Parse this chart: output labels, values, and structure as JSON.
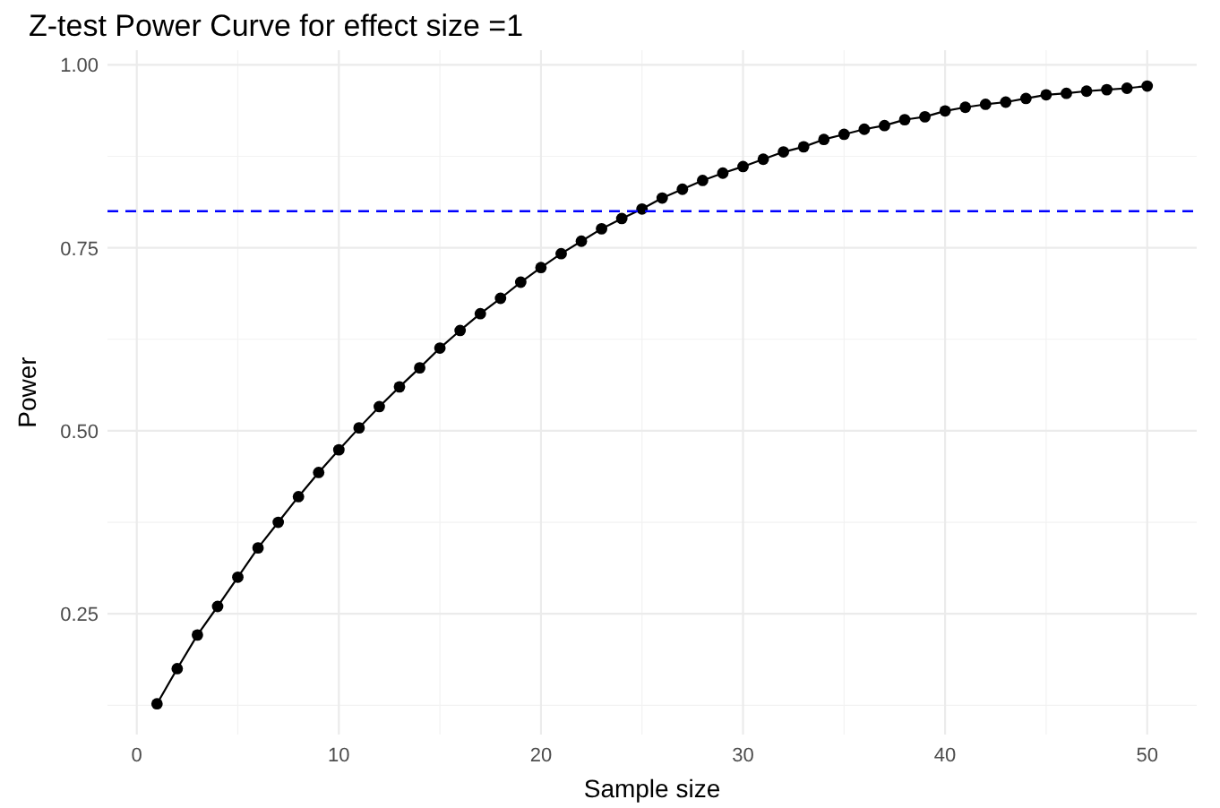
{
  "chart_data": {
    "type": "line",
    "title": "Z-test Power Curve for effect size =1",
    "xlabel": "Sample size",
    "ylabel": "Power",
    "x": [
      1,
      2,
      3,
      4,
      5,
      6,
      7,
      8,
      9,
      10,
      11,
      12,
      13,
      14,
      15,
      16,
      17,
      18,
      19,
      20,
      21,
      22,
      23,
      24,
      25,
      26,
      27,
      28,
      29,
      30,
      31,
      32,
      33,
      34,
      35,
      36,
      37,
      38,
      39,
      40,
      41,
      42,
      43,
      44,
      45,
      46,
      47,
      48,
      49,
      50
    ],
    "series": [
      {
        "color": "#000000",
        "values": [
          0.127,
          0.175,
          0.221,
          0.26,
          0.3,
          0.34,
          0.375,
          0.41,
          0.443,
          0.474,
          0.504,
          0.533,
          0.56,
          0.586,
          0.613,
          0.637,
          0.66,
          0.681,
          0.703,
          0.723,
          0.742,
          0.759,
          0.776,
          0.79,
          0.803,
          0.818,
          0.83,
          0.842,
          0.852,
          0.861,
          0.871,
          0.881,
          0.888,
          0.898,
          0.905,
          0.912,
          0.917,
          0.925,
          0.929,
          0.937,
          0.942,
          0.946,
          0.949,
          0.954,
          0.959,
          0.961,
          0.964,
          0.966,
          0.968,
          0.971
        ]
      }
    ],
    "xlim": [
      -1.45,
      52.45
    ],
    "ylim": [
      0.085,
      1.02
    ],
    "xticks": [
      0,
      10,
      20,
      30,
      40,
      50
    ],
    "yticks": [
      {
        "value": 0.25,
        "label": "0.25"
      },
      {
        "value": 0.5,
        "label": "0.50"
      },
      {
        "value": 0.75,
        "label": "0.75"
      },
      {
        "value": 1,
        "label": "1.00"
      }
    ],
    "ref_lines": [
      {
        "axis": "y",
        "value": 0.8,
        "color": "#0000ff",
        "line_style": "dashed"
      }
    ],
    "grid": true,
    "marker": "circle",
    "line_style": "solid"
  }
}
